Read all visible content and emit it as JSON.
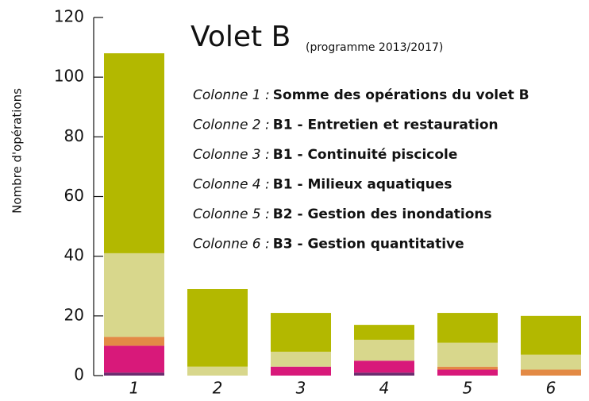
{
  "chart_data": {
    "type": "stacked_bar",
    "title": "Volet B",
    "subtitle": "(programme 2013/2017)",
    "y_label": "Nombre d'opérations",
    "categories": [
      "1",
      "2",
      "3",
      "4",
      "5",
      "6"
    ],
    "series": [
      {
        "color": "#6b2c6e",
        "values": [
          1,
          0,
          0,
          1,
          0,
          0
        ]
      },
      {
        "color": "#d8197a",
        "values": [
          9,
          0,
          3,
          4,
          2,
          0
        ]
      },
      {
        "color": "#e38a45",
        "values": [
          3,
          0,
          0,
          0,
          1,
          2
        ]
      },
      {
        "color": "#d8d78c",
        "values": [
          28,
          3,
          5,
          7,
          8,
          5
        ]
      },
      {
        "color": "#b3b800",
        "values": [
          67,
          26,
          13,
          5,
          10,
          13
        ]
      }
    ],
    "ylim": [
      0,
      120
    ],
    "yticks": [
      0,
      20,
      40,
      60,
      80,
      100,
      120
    ],
    "annotations": [
      {
        "prefix": "Colonne 1 :",
        "text": "Somme des opérations du volet B"
      },
      {
        "prefix": "Colonne 2 :",
        "text": "B1 - Entretien et restauration"
      },
      {
        "prefix": "Colonne 3 :",
        "text": "B1 - Continuité piscicole"
      },
      {
        "prefix": "Colonne 4 :",
        "text": "B1 - Milieux aquatiques"
      },
      {
        "prefix": "Colonne 5 :",
        "text": "B2 - Gestion des inondations"
      },
      {
        "prefix": "Colonne 6 :",
        "text": "B3 - Gestion quantitative"
      }
    ]
  }
}
